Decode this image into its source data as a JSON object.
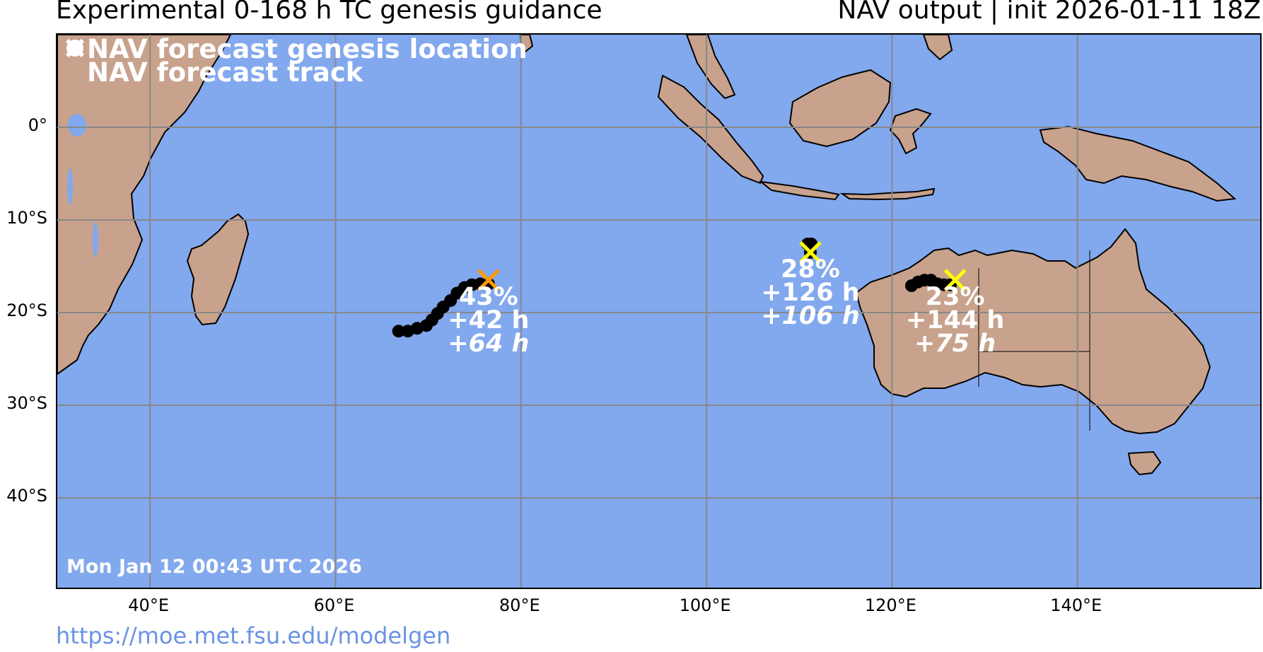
{
  "header": {
    "title": "Experimental 0-168 h TC genesis guidance",
    "subtitle": "NAV output | init 2026-01-11 18Z"
  },
  "legend": {
    "genesis_label": "NAV forecast genesis location",
    "track_label": "NAV forecast track"
  },
  "map": {
    "lon_range": [
      30,
      160
    ],
    "lat_range": [
      -50,
      10
    ],
    "ocean_color": "#82a8ee",
    "land_color": "#c8a28c",
    "grid_color": "#888888",
    "lat_ticks": [
      "0°",
      "10°S",
      "20°S",
      "30°S",
      "40°S"
    ],
    "lon_ticks": [
      "40°E",
      "60°E",
      "80°E",
      "100°E",
      "120°E",
      "140°E"
    ],
    "timestamp": "Mon Jan 12 00:43 UTC 2026"
  },
  "storms": [
    {
      "genesis": {
        "lon": 76.5,
        "lat": -16.5
      },
      "color": "#ff9900",
      "probability": "43%",
      "genesis_time": "+42 h",
      "lead_time": "+64 h",
      "track": [
        [
          66.8,
          -22.0
        ],
        [
          67.8,
          -22.0
        ],
        [
          68.8,
          -21.7
        ],
        [
          69.8,
          -21.4
        ],
        [
          70.4,
          -20.8
        ],
        [
          71.0,
          -20.1
        ],
        [
          71.6,
          -19.4
        ],
        [
          72.4,
          -18.7
        ],
        [
          73.1,
          -17.9
        ],
        [
          73.9,
          -17.3
        ],
        [
          74.7,
          -17.0
        ],
        [
          75.6,
          -16.9
        ],
        [
          76.5,
          -16.9
        ]
      ]
    },
    {
      "genesis": {
        "lon": 111.2,
        "lat": -13.5
      },
      "color": "#ffff00",
      "probability": "28%",
      "genesis_time": "+126 h",
      "lead_time": "+106 h",
      "track": [
        [
          110.9,
          -12.6
        ],
        [
          111.3,
          -12.6
        ],
        [
          111.2,
          -13.5
        ]
      ]
    },
    {
      "genesis": {
        "lon": 126.8,
        "lat": -16.5
      },
      "color": "#ffff00",
      "probability": "23%",
      "genesis_time": "+144 h",
      "lead_time": "+75 h",
      "track": [
        [
          122.1,
          -17.1
        ],
        [
          122.8,
          -16.7
        ],
        [
          123.5,
          -16.5
        ],
        [
          124.2,
          -16.5
        ],
        [
          124.9,
          -16.9
        ],
        [
          125.6,
          -17.0
        ],
        [
          126.3,
          -17.0
        ]
      ]
    }
  ],
  "footer": {
    "url": "https://moe.met.fsu.edu/modelgen"
  }
}
